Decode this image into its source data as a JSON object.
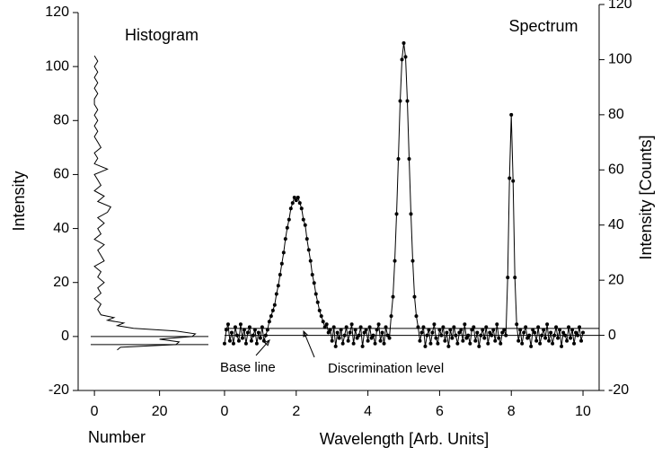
{
  "chart_data": [
    {
      "type": "line",
      "title": "Histogram",
      "x_label": "Number",
      "y_label": "Intensity",
      "x": [
        7,
        8,
        25,
        26,
        20,
        30,
        31,
        25,
        12,
        7,
        9,
        4,
        6,
        2,
        1,
        2,
        0,
        2,
        1,
        3,
        1,
        2,
        0,
        3,
        2,
        1,
        3,
        0,
        2,
        1,
        3,
        1,
        4,
        5,
        1,
        3,
        0,
        2,
        1,
        0,
        4,
        0,
        1,
        0,
        2,
        1,
        0,
        1,
        0,
        1,
        0,
        1,
        0,
        0,
        1,
        0,
        1,
        0,
        1,
        0,
        1,
        0
      ],
      "values": [
        -5,
        -4,
        -3,
        -2,
        -1,
        0,
        1,
        2,
        3,
        4,
        5,
        6,
        7,
        8,
        10,
        12,
        14,
        16,
        18,
        20,
        22,
        24,
        26,
        28,
        30,
        32,
        34,
        36,
        38,
        40,
        42,
        44,
        46,
        48,
        50,
        52,
        54,
        56,
        58,
        60,
        62,
        64,
        66,
        68,
        70,
        72,
        74,
        76,
        78,
        80,
        82,
        84,
        86,
        88,
        90,
        92,
        94,
        96,
        98,
        100,
        102,
        104
      ],
      "color": "#000000",
      "xlim": [
        -5,
        35
      ],
      "xticks": [
        0,
        20
      ],
      "ylim": [
        -20,
        120
      ],
      "yticks": [
        -20,
        0,
        20,
        40,
        60,
        80,
        100,
        120
      ],
      "hlines": [
        0,
        -3
      ]
    },
    {
      "type": "line",
      "title": "Spectrum",
      "x_label": "Wavelength [Arb. Units]",
      "y_label": "Intensity [Counts]",
      "y_axis_side": "right",
      "markers": true,
      "x": [
        0,
        0.05,
        0.1,
        0.15,
        0.2,
        0.25,
        0.3,
        0.35,
        0.4,
        0.45,
        0.5,
        0.55,
        0.6,
        0.65,
        0.7,
        0.75,
        0.8,
        0.85,
        0.9,
        0.95,
        1,
        1.05,
        1.1,
        1.15,
        1.2,
        1.25,
        1.3,
        1.35,
        1.4,
        1.45,
        1.5,
        1.55,
        1.6,
        1.65,
        1.7,
        1.75,
        1.8,
        1.85,
        1.9,
        1.95,
        2,
        2.05,
        2.1,
        2.15,
        2.2,
        2.25,
        2.3,
        2.35,
        2.4,
        2.45,
        2.5,
        2.55,
        2.6,
        2.65,
        2.7,
        2.75,
        2.8,
        2.85,
        2.9,
        2.95,
        3,
        3.05,
        3.1,
        3.15,
        3.2,
        3.25,
        3.3,
        3.35,
        3.4,
        3.45,
        3.5,
        3.55,
        3.6,
        3.65,
        3.7,
        3.75,
        3.8,
        3.85,
        3.9,
        3.95,
        4,
        4.05,
        4.1,
        4.15,
        4.2,
        4.25,
        4.3,
        4.35,
        4.4,
        4.45,
        4.5,
        4.55,
        4.6,
        4.65,
        4.7,
        4.75,
        4.8,
        4.85,
        4.9,
        4.95,
        5,
        5.05,
        5.1,
        5.15,
        5.2,
        5.25,
        5.3,
        5.35,
        5.4,
        5.45,
        5.5,
        5.55,
        5.6,
        5.65,
        5.7,
        5.75,
        5.8,
        5.85,
        5.9,
        5.95,
        6,
        6.05,
        6.1,
        6.15,
        6.2,
        6.25,
        6.3,
        6.35,
        6.4,
        6.45,
        6.5,
        6.55,
        6.6,
        6.65,
        6.7,
        6.75,
        6.8,
        6.85,
        6.9,
        6.95,
        7,
        7.05,
        7.1,
        7.15,
        7.2,
        7.25,
        7.3,
        7.35,
        7.4,
        7.45,
        7.5,
        7.55,
        7.6,
        7.65,
        7.7,
        7.75,
        7.8,
        7.85,
        7.9,
        7.95,
        8,
        8.05,
        8.1,
        8.15,
        8.2,
        8.25,
        8.3,
        8.35,
        8.4,
        8.45,
        8.5,
        8.55,
        8.6,
        8.65,
        8.7,
        8.75,
        8.8,
        8.85,
        8.9,
        8.95,
        9,
        9.05,
        9.1,
        9.15,
        9.2,
        9.25,
        9.3,
        9.35,
        9.4,
        9.45,
        9.5,
        9.55,
        9.6,
        9.65,
        9.7,
        9.75,
        9.8,
        9.85,
        9.9,
        9.95,
        10
      ],
      "values": [
        -3,
        2,
        4,
        -2,
        1,
        -3,
        3,
        0,
        -2,
        4,
        -1,
        2,
        -3,
        1,
        3,
        -2,
        0,
        2,
        -3,
        1,
        -1,
        3,
        -2,
        0,
        2,
        5,
        7,
        9,
        11,
        15,
        18,
        22,
        26,
        30,
        35,
        39,
        42,
        46,
        48,
        50,
        49,
        50,
        48,
        46,
        42,
        40,
        35,
        31,
        27,
        22,
        19,
        15,
        12,
        9,
        7,
        5,
        3,
        4,
        1,
        2,
        -2,
        3,
        -4,
        1,
        -1,
        2,
        -3,
        0,
        3,
        -2,
        1,
        4,
        -3,
        2,
        -1,
        0,
        3,
        -4,
        1,
        2,
        -2,
        3,
        -1,
        0,
        -3,
        2,
        4,
        -2,
        1,
        -3,
        3,
        0,
        -1,
        7,
        14,
        27,
        44,
        64,
        85,
        100,
        106,
        101,
        85,
        64,
        44,
        27,
        14,
        7,
        3,
        -2,
        1,
        3,
        -4,
        0,
        2,
        -3,
        1,
        4,
        -1,
        -3,
        2,
        0,
        3,
        -2,
        1,
        -4,
        2,
        -1,
        3,
        0,
        -3,
        1,
        2,
        -2,
        4,
        -1,
        0,
        -3,
        2,
        3,
        -2,
        1,
        -4,
        0,
        2,
        -1,
        3,
        -3,
        1,
        0,
        2,
        -2,
        4,
        -1,
        -3,
        1,
        2,
        0,
        21,
        57,
        80,
        56,
        21,
        4,
        -2,
        2,
        -3,
        1,
        3,
        -1,
        0,
        -4,
        2,
        1,
        -2,
        3,
        -3,
        0,
        2,
        -1,
        4,
        -2,
        1,
        -3,
        0,
        3,
        -1,
        2,
        -4,
        1,
        0,
        -2,
        3,
        -1,
        2,
        -3,
        1,
        0,
        3,
        -2,
        1
      ],
      "color": "#000000",
      "xlim": [
        -0.45,
        10.45
      ],
      "xticks": [
        0,
        2,
        4,
        6,
        8,
        10
      ],
      "ylim": [
        -20,
        120
      ],
      "yticks": [
        -20,
        0,
        20,
        40,
        60,
        80,
        100,
        120
      ],
      "hlines": [
        0,
        2.5
      ],
      "annotations": [
        {
          "text": "Base line"
        },
        {
          "text": "Discrimination level"
        }
      ]
    }
  ]
}
